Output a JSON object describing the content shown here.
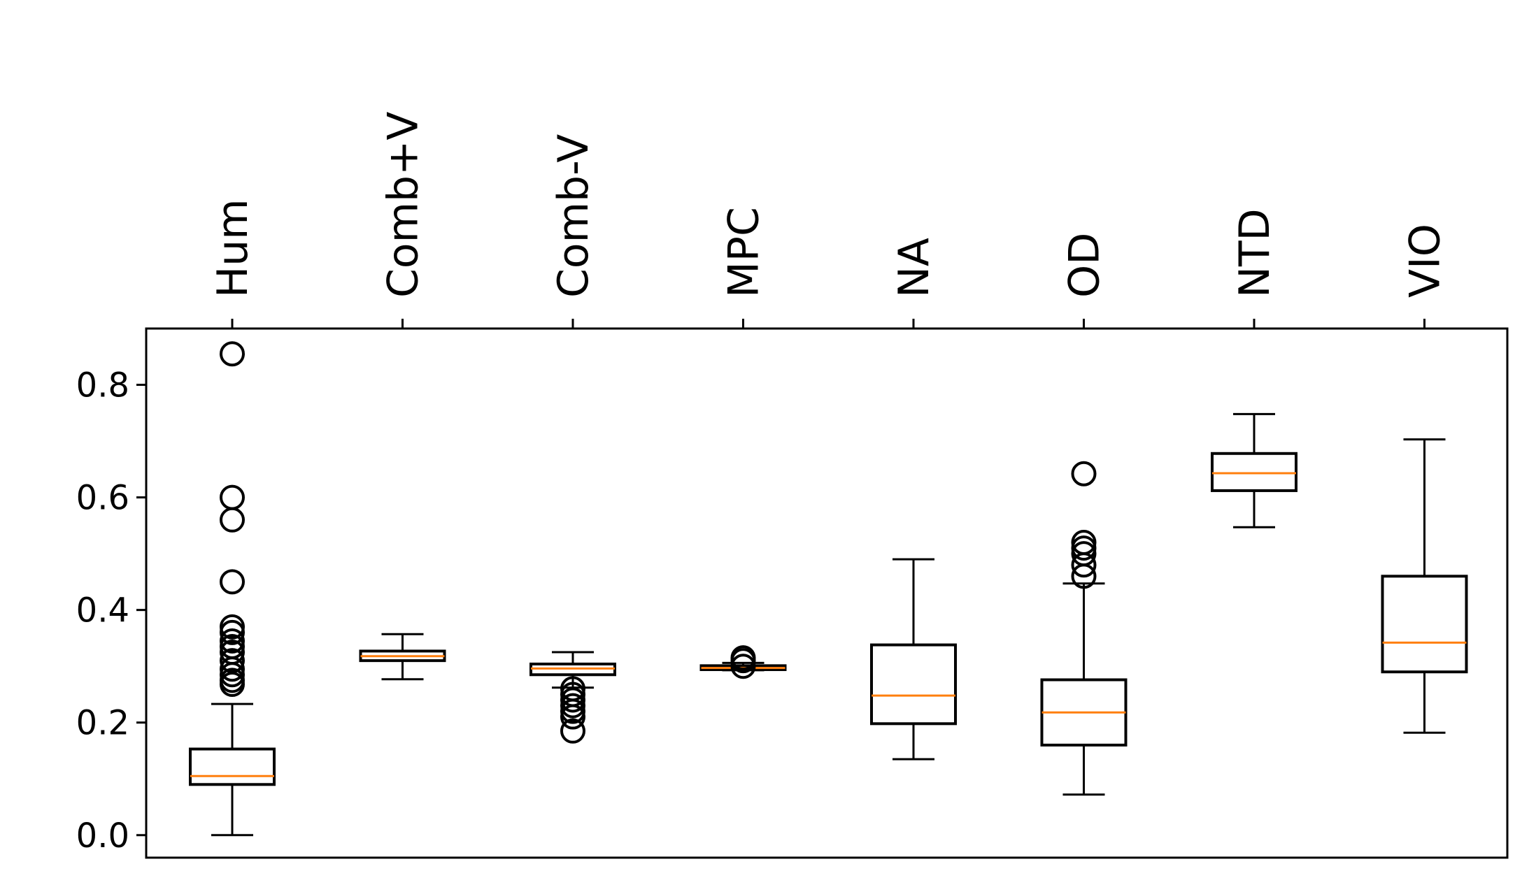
{
  "chart_data": {
    "type": "box",
    "title": "",
    "xlabel": "",
    "ylabel": "",
    "ylim": [
      -0.04,
      0.9
    ],
    "yticks": [
      0.0,
      0.2,
      0.4,
      0.6,
      0.8
    ],
    "ytick_labels": [
      "0.0",
      "0.2",
      "0.4",
      "0.6",
      "0.8"
    ],
    "categories": [
      "Hum",
      "Comb+V",
      "Comb-V",
      "MPC",
      "NA",
      "OD",
      "NTD",
      "VIO"
    ],
    "xtick_position": "top",
    "xtick_rotation": 90,
    "grid": false,
    "colors": {
      "box": "#000000",
      "median": "#ff7f0e",
      "flier": "#000000"
    },
    "boxes": [
      {
        "label": "Hum",
        "whisker_low": 0.0,
        "q1": 0.09,
        "median": 0.105,
        "q3": 0.153,
        "whisker_high": 0.233,
        "fliers": [
          0.855,
          0.6,
          0.56,
          0.45,
          0.37,
          0.36,
          0.345,
          0.335,
          0.325,
          0.31,
          0.295,
          0.285,
          0.275,
          0.268
        ]
      },
      {
        "label": "Comb+V",
        "whisker_low": 0.277,
        "q1": 0.31,
        "median": 0.318,
        "q3": 0.327,
        "whisker_high": 0.357,
        "fliers": []
      },
      {
        "label": "Comb-V",
        "whisker_low": 0.262,
        "q1": 0.285,
        "median": 0.296,
        "q3": 0.304,
        "whisker_high": 0.325,
        "fliers": [
          0.26,
          0.25,
          0.24,
          0.23,
          0.22,
          0.21,
          0.185
        ]
      },
      {
        "label": "MPC",
        "whisker_low": 0.293,
        "q1": 0.294,
        "median": 0.297,
        "q3": 0.301,
        "whisker_high": 0.306,
        "fliers": [
          0.315,
          0.31,
          0.3
        ]
      },
      {
        "label": "NA",
        "whisker_low": 0.135,
        "q1": 0.198,
        "median": 0.248,
        "q3": 0.338,
        "whisker_high": 0.49,
        "fliers": []
      },
      {
        "label": "OD",
        "whisker_low": 0.072,
        "q1": 0.16,
        "median": 0.218,
        "q3": 0.276,
        "whisker_high": 0.447,
        "fliers": [
          0.642,
          0.52,
          0.51,
          0.5,
          0.48,
          0.46
        ]
      },
      {
        "label": "NTD",
        "whisker_low": 0.547,
        "q1": 0.612,
        "median": 0.643,
        "q3": 0.678,
        "whisker_high": 0.748,
        "fliers": []
      },
      {
        "label": "VIO",
        "whisker_low": 0.182,
        "q1": 0.29,
        "median": 0.342,
        "q3": 0.46,
        "whisker_high": 0.703,
        "fliers": []
      }
    ]
  }
}
